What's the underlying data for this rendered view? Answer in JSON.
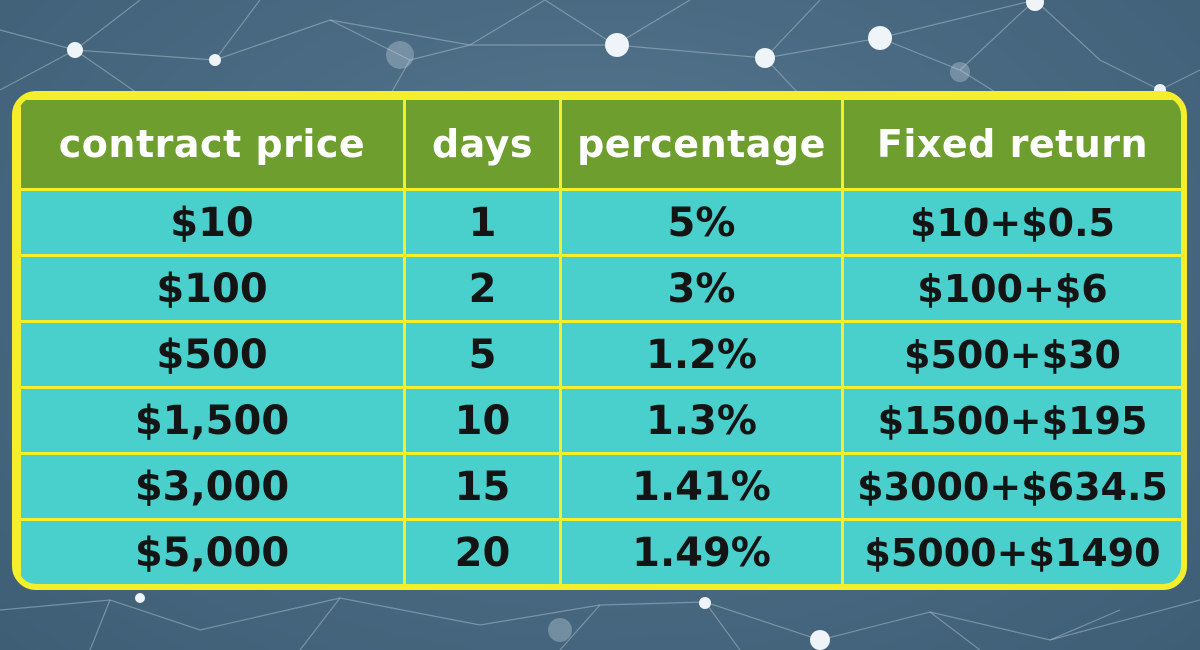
{
  "theme": {
    "header_bg": "#6e9e2e",
    "cell_bg": "#49cfcc",
    "border": "#f4ef2a",
    "background": "#4a6b83"
  },
  "table": {
    "headers": [
      "contract price",
      "days",
      "percentage",
      "Fixed return"
    ],
    "rows": [
      [
        "$10",
        "1",
        "5%",
        "$10+$0.5"
      ],
      [
        "$100",
        "2",
        "3%",
        "$100+$6"
      ],
      [
        "$500",
        "5",
        "1.2%",
        "$500+$30"
      ],
      [
        "$1,500",
        "10",
        "1.3%",
        "$1500+$195"
      ],
      [
        "$3,000",
        "15",
        "1.41%",
        "$3000+$634.5"
      ],
      [
        "$5,000",
        "20",
        "1.49%",
        "$5000+$1490"
      ]
    ]
  }
}
